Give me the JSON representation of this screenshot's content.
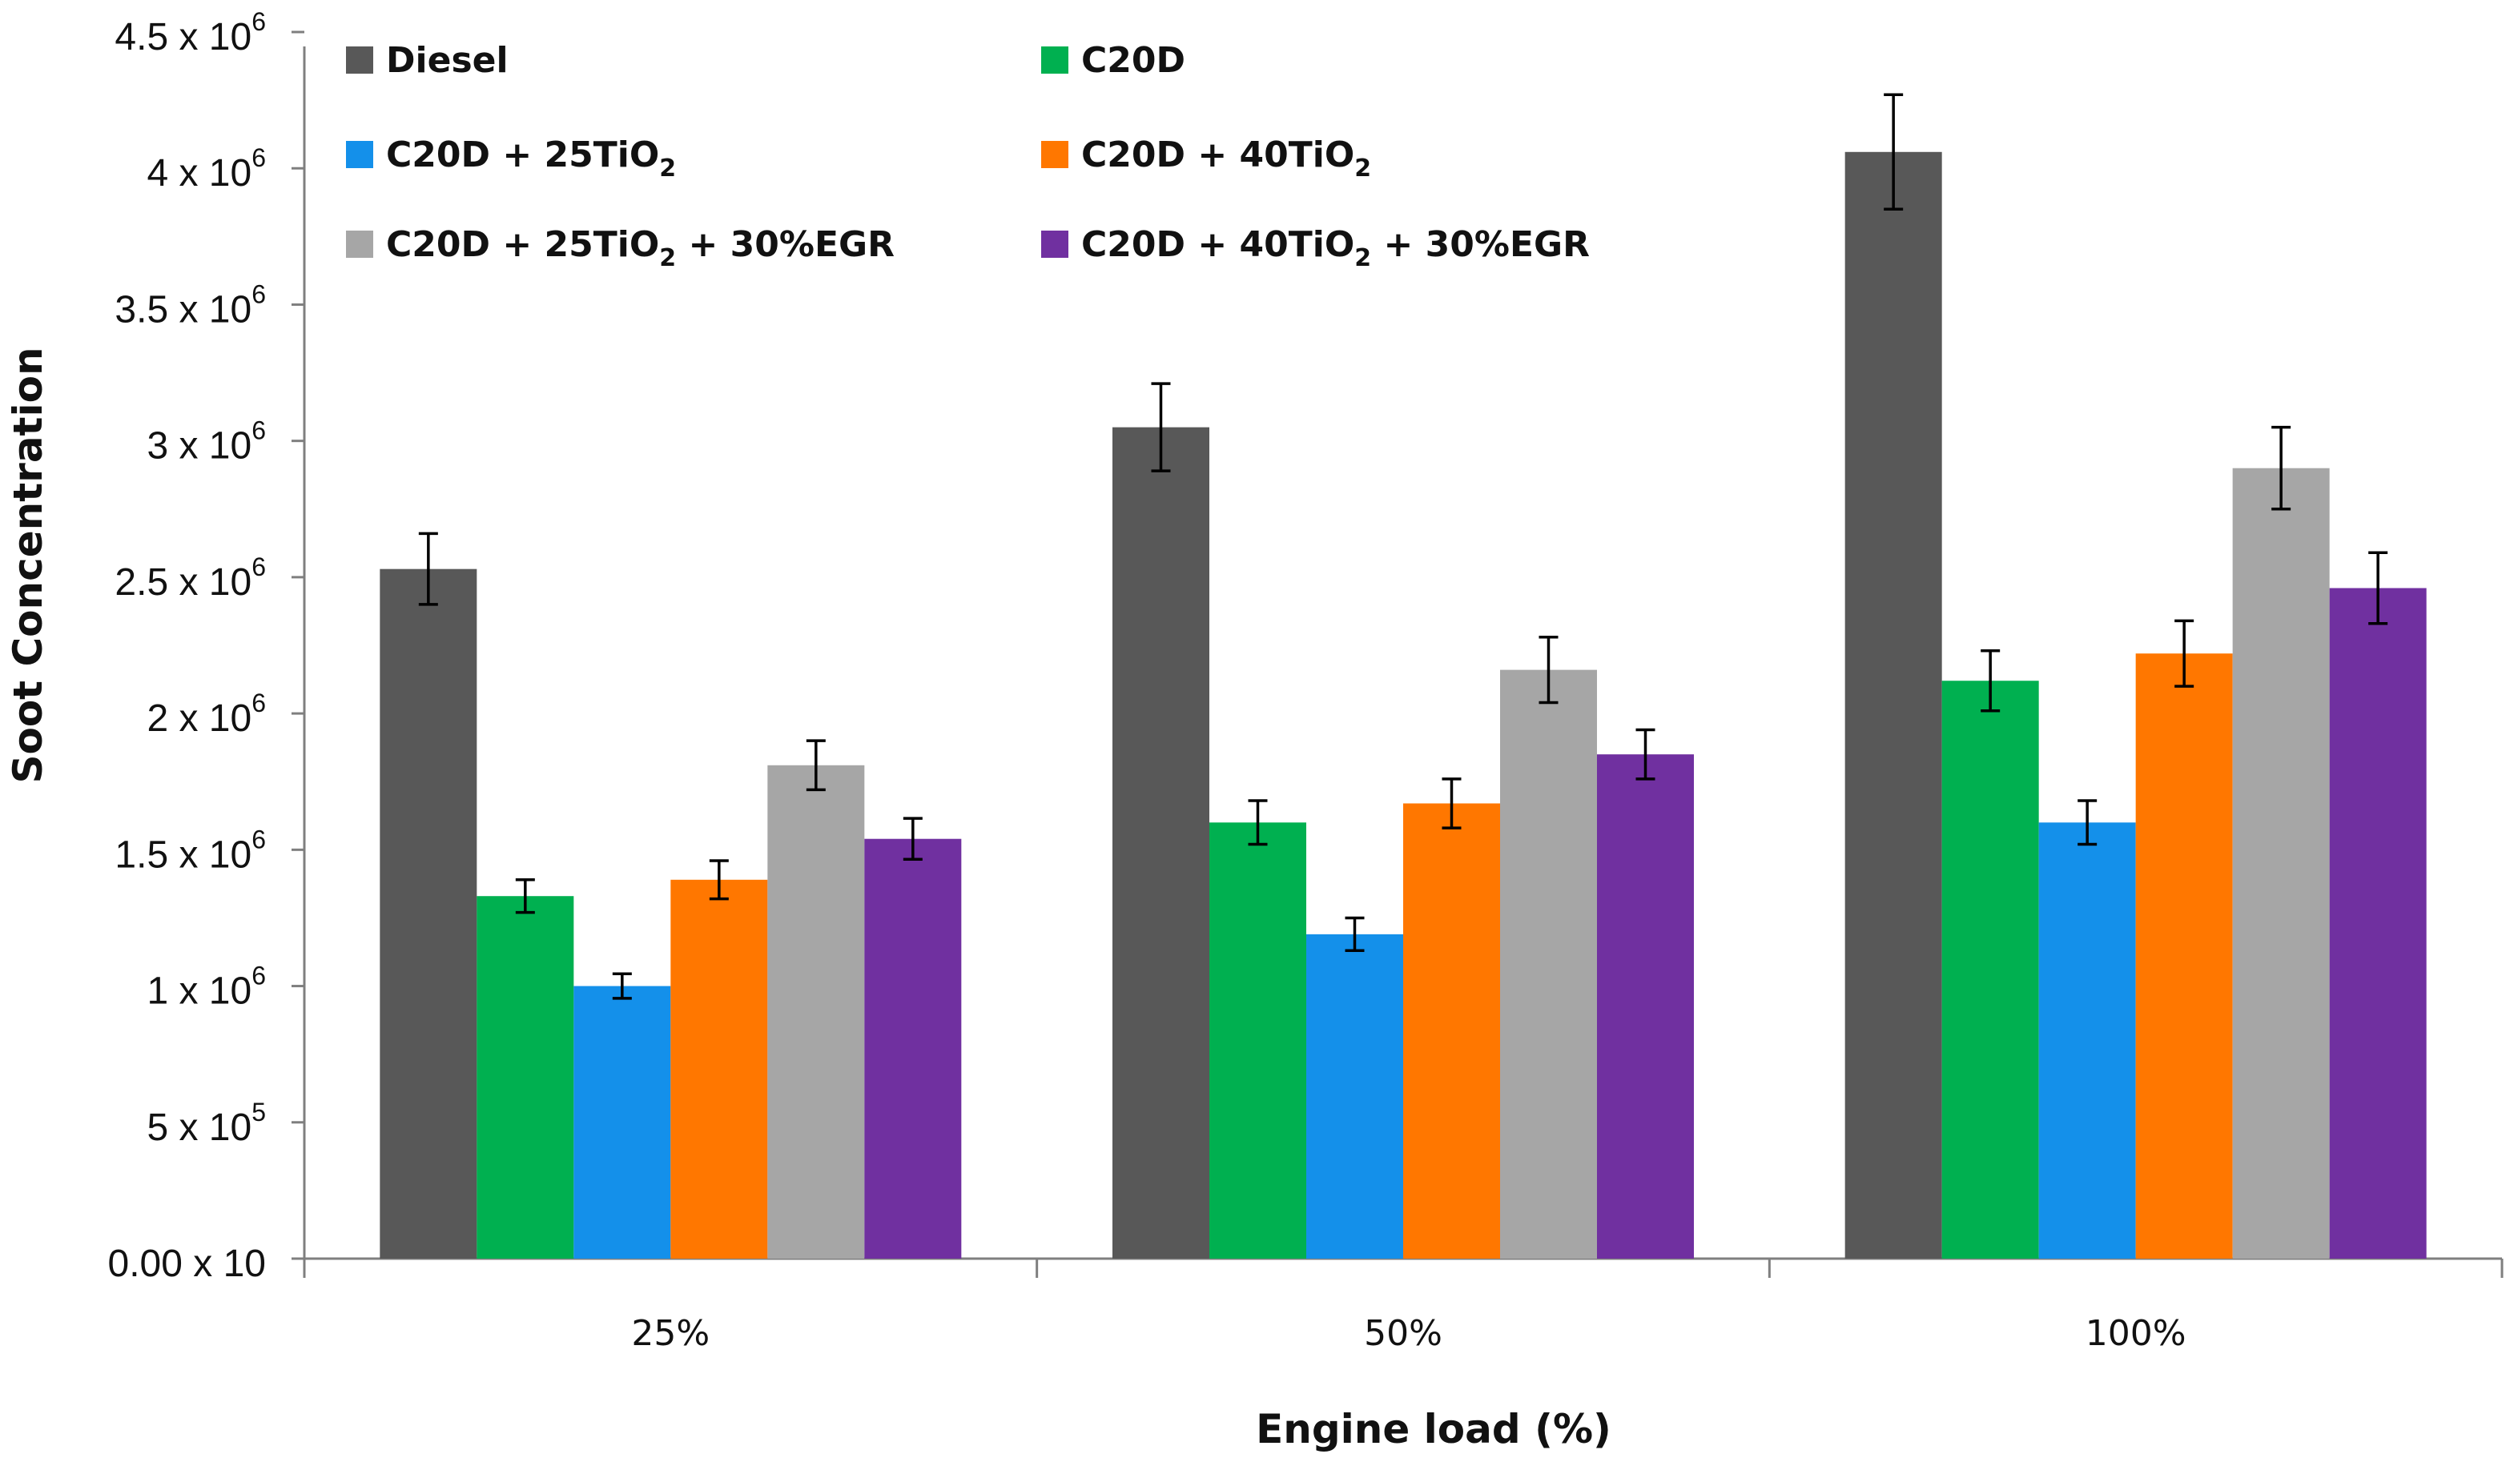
{
  "chart_data": {
    "type": "bar",
    "title": "",
    "xlabel": "Engine load (%)",
    "ylabel": "Soot Concentration",
    "categories": [
      "25%",
      "50%",
      "100%"
    ],
    "ylim": [
      0,
      4500000
    ],
    "grid": false,
    "legend_position": "top",
    "y_ticks": [
      {
        "value": 0,
        "base": "0.00 x 10",
        "exp": ""
      },
      {
        "value": 500000,
        "base": "5 x 10",
        "exp": "5"
      },
      {
        "value": 1000000,
        "base": "1 x 10",
        "exp": "6"
      },
      {
        "value": 1500000,
        "base": "1.5 x 10",
        "exp": "6"
      },
      {
        "value": 2000000,
        "base": "2 x 10",
        "exp": "6"
      },
      {
        "value": 2500000,
        "base": "2.5 x 10",
        "exp": "6"
      },
      {
        "value": 3000000,
        "base": "3 x 10",
        "exp": "6"
      },
      {
        "value": 3500000,
        "base": "3.5 x 10",
        "exp": "6"
      },
      {
        "value": 4000000,
        "base": "4 x 10",
        "exp": "6"
      },
      {
        "value": 4500000,
        "base": "4.5 x 10",
        "exp": "6"
      }
    ],
    "series": [
      {
        "name": "Diesel",
        "label_parts": [
          "Diesel"
        ],
        "color": "#585858",
        "values": [
          2530000,
          3050000,
          4060000
        ],
        "errors": [
          130000,
          160000,
          210000
        ]
      },
      {
        "name": "C20D",
        "label_parts": [
          "C20D"
        ],
        "color": "#00b050",
        "values": [
          1330000,
          1600000,
          2120000
        ],
        "errors": [
          60000,
          80000,
          110000
        ]
      },
      {
        "name": "C20D + 25TiO2",
        "label_parts": [
          "C20D + 25TiO",
          "2"
        ],
        "color": "#1490ea",
        "values": [
          1000000,
          1190000,
          1600000
        ],
        "errors": [
          45000,
          60000,
          80000
        ]
      },
      {
        "name": "C20D + 40TiO2",
        "label_parts": [
          "C20D + 40TiO",
          "2"
        ],
        "color": "#ff7700",
        "values": [
          1390000,
          1670000,
          2220000
        ],
        "errors": [
          70000,
          90000,
          120000
        ]
      },
      {
        "name": "C20D + 25TiO2 + 30%EGR",
        "label_parts": [
          "C20D + 25TiO",
          "2",
          " + 30%EGR"
        ],
        "color": "#a6a6a6",
        "values": [
          1810000,
          2160000,
          2900000
        ],
        "errors": [
          90000,
          120000,
          150000
        ]
      },
      {
        "name": "C20D + 40TiO2 + 30%EGR",
        "label_parts": [
          "C20D + 40TiO",
          "2",
          " + 30%EGR"
        ],
        "color": "#7030a0",
        "values": [
          1540000,
          1850000,
          2460000
        ],
        "errors": [
          75000,
          90000,
          130000
        ]
      }
    ]
  }
}
